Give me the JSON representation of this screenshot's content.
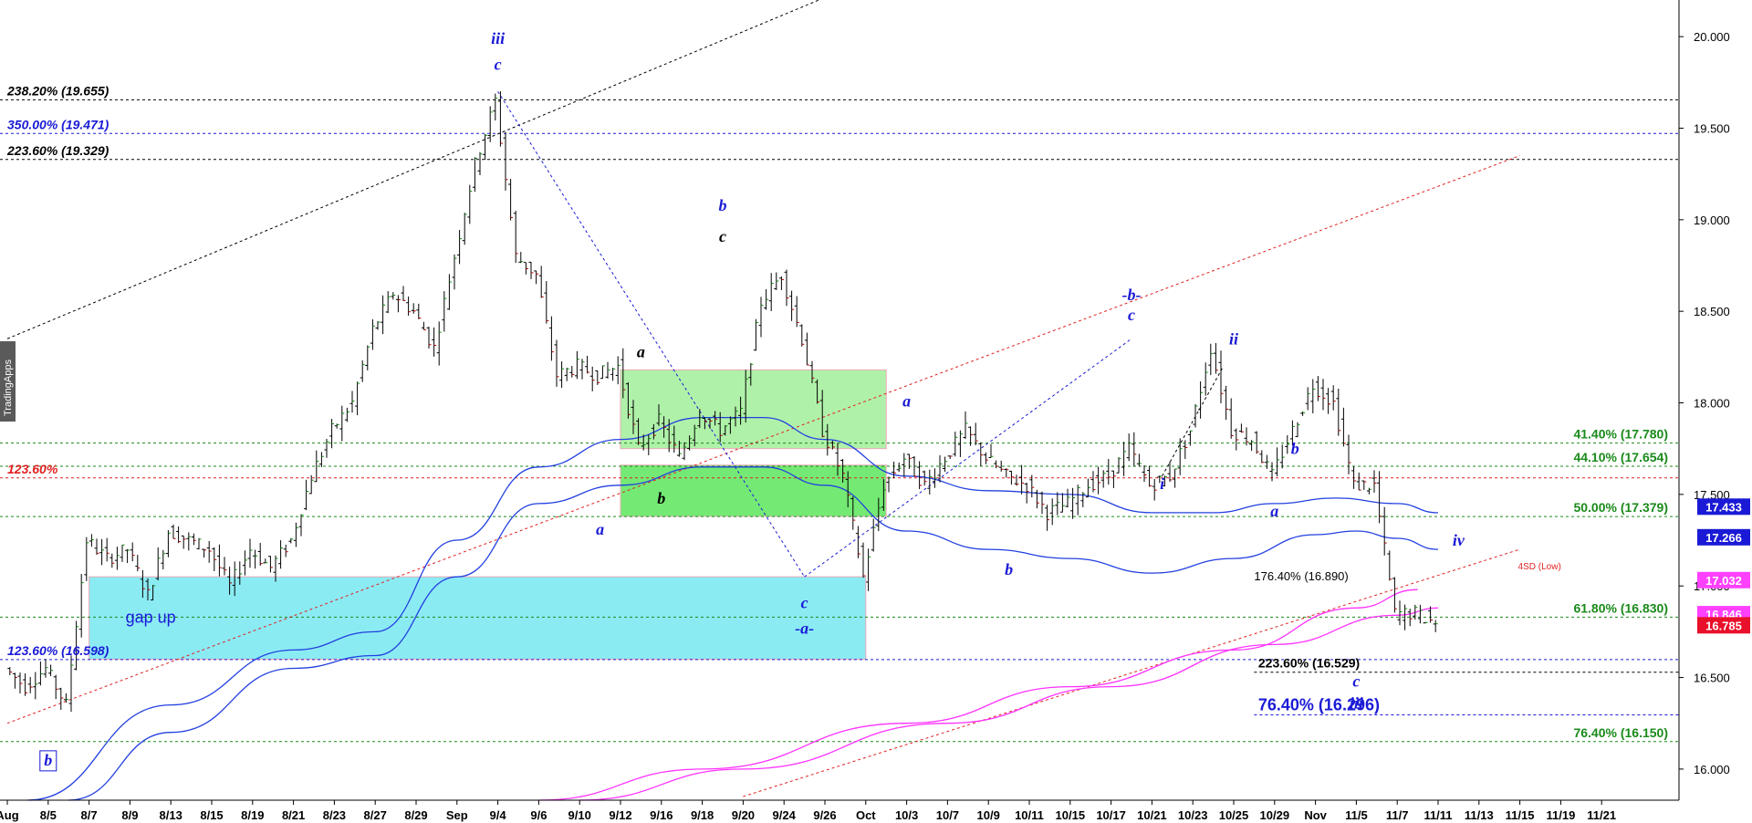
{
  "watermark": "TradingApps",
  "chart_data": {
    "type": "candlestick",
    "ylim": [
      15.83,
      20.2
    ],
    "y_ticks": [
      "20.000",
      "19.500",
      "19.000",
      "18.500",
      "18.000",
      "17.500",
      "17.000",
      "16.500",
      "16.000"
    ],
    "y_tick_values": [
      20.0,
      19.5,
      19.0,
      18.5,
      18.0,
      17.5,
      17.0,
      16.5,
      16.0
    ],
    "x_labels": [
      "Aug",
      "8/5",
      "8/7",
      "8/9",
      "8/13",
      "8/15",
      "8/19",
      "8/21",
      "8/23",
      "8/27",
      "8/29",
      "Sep",
      "9/4",
      "9/6",
      "9/10",
      "9/12",
      "9/16",
      "9/18",
      "9/20",
      "9/24",
      "9/26",
      "Oct",
      "10/3",
      "10/7",
      "10/9",
      "10/11",
      "10/15",
      "10/17",
      "10/21",
      "10/23",
      "10/25",
      "10/29",
      "Nov",
      "11/5",
      "11/7",
      "11/11",
      "11/13",
      "11/15",
      "11/19",
      "11/21"
    ],
    "x_label_index": [
      0,
      2,
      4,
      6,
      8,
      10,
      12,
      14,
      16,
      18,
      20,
      22,
      24,
      26,
      28,
      30,
      32,
      34,
      36,
      38,
      40,
      42,
      44,
      46,
      48,
      50,
      52,
      54,
      56,
      58,
      60,
      62,
      64,
      66,
      68,
      70,
      72,
      74,
      76,
      78
    ],
    "price_path": [
      [
        0,
        16.55
      ],
      [
        1,
        16.45
      ],
      [
        2,
        16.55
      ],
      [
        3,
        16.35
      ],
      [
        4,
        17.25
      ],
      [
        5,
        17.15
      ],
      [
        6,
        17.2
      ],
      [
        7,
        16.95
      ],
      [
        8,
        17.3
      ],
      [
        9,
        17.25
      ],
      [
        10,
        17.2
      ],
      [
        11,
        17.0
      ],
      [
        12,
        17.2
      ],
      [
        13,
        17.1
      ],
      [
        14,
        17.25
      ],
      [
        15,
        17.6
      ],
      [
        16,
        17.85
      ],
      [
        17,
        18.0
      ],
      [
        18,
        18.4
      ],
      [
        19,
        18.6
      ],
      [
        20,
        18.5
      ],
      [
        21,
        18.3
      ],
      [
        22,
        18.8
      ],
      [
        23,
        19.3
      ],
      [
        24,
        19.65
      ],
      [
        25,
        18.8
      ],
      [
        26,
        18.7
      ],
      [
        27,
        18.15
      ],
      [
        28,
        18.2
      ],
      [
        29,
        18.15
      ],
      [
        30,
        18.2
      ],
      [
        31,
        17.75
      ],
      [
        32,
        17.9
      ],
      [
        33,
        17.7
      ],
      [
        34,
        17.95
      ],
      [
        35,
        17.85
      ],
      [
        36,
        17.95
      ],
      [
        37,
        18.55
      ],
      [
        38,
        18.7
      ],
      [
        39,
        18.35
      ],
      [
        40,
        17.85
      ],
      [
        41,
        17.6
      ],
      [
        42,
        17.05
      ],
      [
        43,
        17.55
      ],
      [
        44,
        17.7
      ],
      [
        45,
        17.55
      ],
      [
        46,
        17.7
      ],
      [
        47,
        17.85
      ],
      [
        48,
        17.7
      ],
      [
        49,
        17.6
      ],
      [
        50,
        17.55
      ],
      [
        51,
        17.4
      ],
      [
        52,
        17.45
      ],
      [
        53,
        17.55
      ],
      [
        54,
        17.6
      ],
      [
        55,
        17.75
      ],
      [
        56,
        17.55
      ],
      [
        57,
        17.6
      ],
      [
        58,
        17.85
      ],
      [
        59,
        18.3
      ],
      [
        60,
        17.85
      ],
      [
        61,
        17.8
      ],
      [
        62,
        17.6
      ],
      [
        63,
        17.85
      ],
      [
        64,
        18.1
      ],
      [
        65,
        18.0
      ],
      [
        66,
        17.55
      ],
      [
        67,
        17.55
      ],
      [
        68,
        16.85
      ],
      [
        69,
        16.85
      ],
      [
        70,
        16.8
      ]
    ],
    "horizontal_levels": [
      {
        "label": "238.20% (19.655)",
        "value": 19.655,
        "color": "#000000",
        "side": "left"
      },
      {
        "label": "350.00% (19.471)",
        "value": 19.471,
        "color": "#1a1ad6",
        "side": "left"
      },
      {
        "label": "223.60% (19.329)",
        "value": 19.329,
        "color": "#000000",
        "side": "left"
      },
      {
        "label": "41.40% (17.780)",
        "value": 17.78,
        "color": "#1a8a1a",
        "side": "right"
      },
      {
        "label": "44.10% (17.654)",
        "value": 17.654,
        "color": "#1a8a1a",
        "side": "right"
      },
      {
        "label": "123.60%",
        "value": 17.59,
        "color": "#e02020",
        "side": "left"
      },
      {
        "label": "50.00% (17.379)",
        "value": 17.379,
        "color": "#1a8a1a",
        "side": "right"
      },
      {
        "label": "61.80% (16.830)",
        "value": 16.83,
        "color": "#1a8a1a",
        "side": "right"
      },
      {
        "label": "123.60% (16.598)",
        "value": 16.598,
        "color": "#1a1ad6",
        "side": "left"
      },
      {
        "label": "223.60% (16.529)",
        "value": 16.529,
        "color": "#000000",
        "side": "mid"
      },
      {
        "label": "76.40% (16.296)",
        "value": 16.296,
        "color": "#1a1ad6",
        "side": "mid"
      },
      {
        "label": "76.40% (16.150)",
        "value": 16.15,
        "color": "#1a8a1a",
        "side": "right"
      }
    ],
    "price_badges": [
      {
        "text": "17.433",
        "value": 17.433,
        "color": "#1a1ad6"
      },
      {
        "text": "17.266",
        "value": 17.266,
        "color": "#1a1ad6"
      },
      {
        "text": "17.032",
        "value": 17.032,
        "color": "#ff40ff"
      },
      {
        "text": "16.846",
        "value": 16.846,
        "color": "#ff40ff"
      },
      {
        "text": "16.785",
        "value": 16.785,
        "color": "#e8102a"
      }
    ],
    "zones": [
      {
        "label": "gap up",
        "x0": 4,
        "x1": 42,
        "y0": 16.6,
        "y1": 17.05,
        "color": "#7fe9f2"
      },
      {
        "label": "",
        "x0": 30,
        "x1": 43,
        "y0": 17.75,
        "y1": 18.18,
        "color": "#a8f0a0"
      },
      {
        "label": "",
        "x0": 30,
        "x1": 43,
        "y0": 17.38,
        "y1": 17.66,
        "color": "#66e866"
      }
    ],
    "wave_labels": [
      {
        "text": "iii",
        "x": 24,
        "y": 19.96,
        "color": "#1a1ad6"
      },
      {
        "text": "c",
        "x": 24,
        "y": 19.82,
        "color": "#1a1ad6"
      },
      {
        "text": "b",
        "x": 35,
        "y": 19.05,
        "color": "#1a1ad6"
      },
      {
        "text": "c",
        "x": 35,
        "y": 18.88,
        "color": "#000000"
      },
      {
        "text": "a",
        "x": 31,
        "y": 18.25,
        "color": "#000000"
      },
      {
        "text": "a",
        "x": 29,
        "y": 17.28,
        "color": "#1a1ad6"
      },
      {
        "text": "b",
        "x": 32,
        "y": 17.45,
        "color": "#000000"
      },
      {
        "text": "a",
        "x": 44,
        "y": 17.98,
        "color": "#1a1ad6"
      },
      {
        "text": "b",
        "x": 49,
        "y": 17.06,
        "color": "#1a1ad6"
      },
      {
        "text": "c",
        "x": 39,
        "y": 16.88,
        "color": "#1a1ad6"
      },
      {
        "text": "-a-",
        "x": 39,
        "y": 16.74,
        "color": "#1a1ad6"
      },
      {
        "text": "-b-",
        "x": 55,
        "y": 18.56,
        "color": "#1a1ad6"
      },
      {
        "text": "c",
        "x": 55,
        "y": 18.45,
        "color": "#1a1ad6"
      },
      {
        "text": "ii",
        "x": 60,
        "y": 18.32,
        "color": "#1a1ad6"
      },
      {
        "text": "i",
        "x": 56.5,
        "y": 17.53,
        "color": "#1a1ad6"
      },
      {
        "text": "b",
        "x": 63,
        "y": 17.72,
        "color": "#1a1ad6"
      },
      {
        "text": "a",
        "x": 62,
        "y": 17.38,
        "color": "#1a1ad6"
      },
      {
        "text": "iv",
        "x": 71,
        "y": 17.22,
        "color": "#1a1ad6"
      },
      {
        "text": "c",
        "x": 66,
        "y": 16.45,
        "color": "#1a1ad6"
      },
      {
        "text": "iii",
        "x": 66,
        "y": 16.33,
        "color": "#1a1ad6"
      },
      {
        "text": "b",
        "x": 2,
        "y": 16.02,
        "color": "#1a1ad6",
        "boxed": true
      }
    ],
    "annotations": [
      {
        "text": "4SD (Low)",
        "x": 72,
        "y": 17.09,
        "color": "#e02020"
      },
      {
        "text": "176.40% (16.890)",
        "x": 61,
        "y": 17.03,
        "color": "#000000"
      }
    ]
  }
}
